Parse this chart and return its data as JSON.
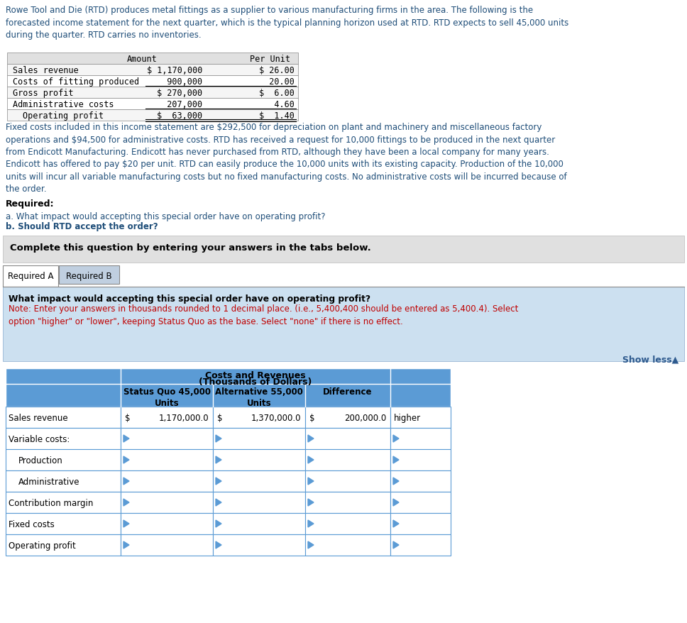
{
  "intro_text": "Rowe Tool and Die (RTD) produces metal fittings as a supplier to various manufacturing firms in the area. The following is the\nforecasted income statement for the next quarter, which is the typical planning horizon used at RTD. RTD expects to sell 45,000 units\nduring the quarter. RTD carries no inventories.",
  "income_rows": [
    [
      "Sales revenue",
      "$ 1,170,000",
      "$ 26.00"
    ],
    [
      "Costs of fitting produced",
      "  900,000",
      "  20.00"
    ],
    [
      "Gross profit",
      "$ 270,000",
      "$  6.00"
    ],
    [
      "Administrative costs",
      "  207,000",
      "   4.60"
    ],
    [
      "Operating profit",
      "$  63,000",
      "$  1.40"
    ]
  ],
  "fixed_text": "Fixed costs included in this income statement are $292,500 for depreciation on plant and machinery and miscellaneous factory\noperations and $94,500 for administrative costs. RTD has received a request for 10,000 fittings to be produced in the next quarter\nfrom Endicott Manufacturing. Endicott has never purchased from RTD, although they have been a local company for many years.\nEndicott has offered to pay $20 per unit. RTD can easily produce the 10,000 units with its existing capacity. Production of the 10,000\nunits will incur all variable manufacturing costs but no fixed manufacturing costs. No administrative costs will be incurred because of\nthe order.",
  "required_label": "Required:",
  "req_a": "a. What impact would accepting this special order have on operating profit?",
  "req_b": "b. Should RTD accept the order?",
  "complete_text": "Complete this question by entering your answers in the tabs below.",
  "tab1": "Required A",
  "tab2": "Required B",
  "question_text": "What impact would accepting this special order have on operating profit?",
  "note_text": "Note: Enter your answers in thousands rounded to 1 decimal place. (i.e., 5,400,400 should be entered as 5,400.4). Select\noption \"higher\" or \"lower\", keeping Status Quo as the base. Select \"none\" if there is no effect.",
  "show_less": "Show less▲",
  "tbl_title1": "Costs and Revenues",
  "tbl_title2": "(Thousands of Dollars)",
  "tbl_hdr1": "Status Quo 45,000\nUnits",
  "tbl_hdr2": "Alternative 55,000\nUnits",
  "tbl_hdr3": "Difference",
  "tbl_rows": [
    [
      "Sales revenue",
      "$",
      "1,170,000.0",
      "$",
      "1,370,000.0",
      "$",
      "200,000.0",
      "higher"
    ],
    [
      "Variable costs:",
      "",
      "",
      "",
      "",
      "",
      "",
      ""
    ],
    [
      "Production",
      "",
      "",
      "",
      "",
      "",
      "",
      ""
    ],
    [
      "Administrative",
      "",
      "",
      "",
      "",
      "",
      "",
      ""
    ],
    [
      "Contribution margin",
      "",
      "",
      "",
      "",
      "",
      "",
      ""
    ],
    [
      "Fixed costs",
      "",
      "",
      "",
      "",
      "",
      "",
      ""
    ],
    [
      "Operating profit",
      "",
      "",
      "",
      "",
      "",
      "",
      ""
    ]
  ],
  "indented_rows": [
    2,
    3
  ],
  "blue_text_color": "#1f4e79",
  "red_color": "#c00000",
  "tbl_blue": "#5b9bd5",
  "panel_bg": "#cce0f0",
  "gray_bg": "#d9d9d9",
  "tab_inactive_bg": "#c0cfe0",
  "show_less_color": "#2e5a8e"
}
